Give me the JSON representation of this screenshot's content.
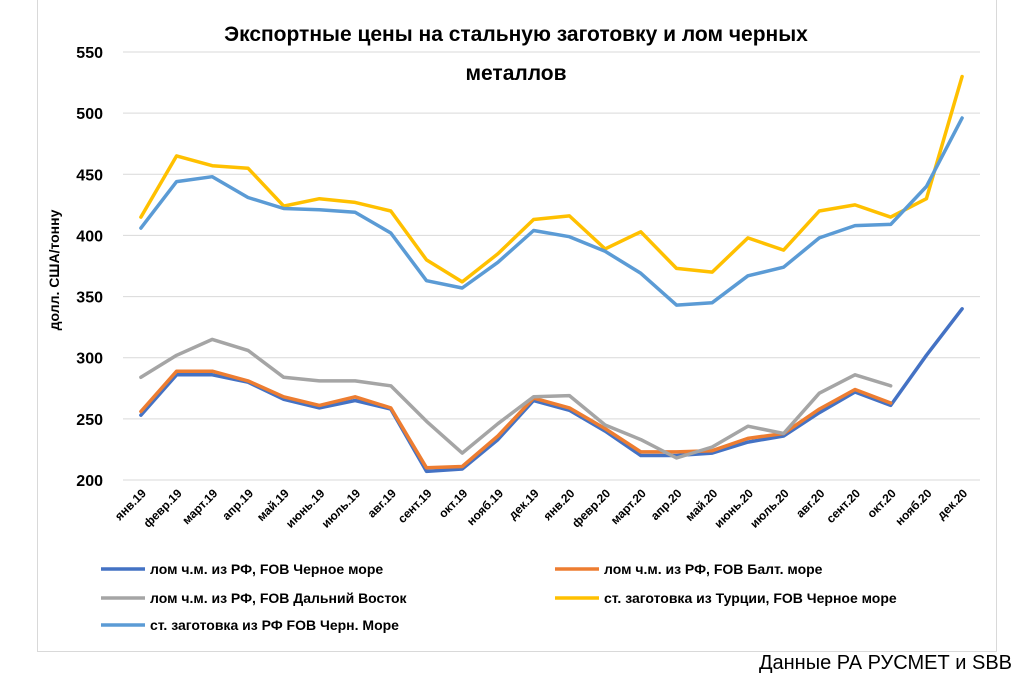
{
  "source_note": "Данные РА РУСМЕТ и SBB",
  "chart_data": {
    "type": "line",
    "title_lines": [
      "Экспортные цены на стальную заготовку и лом черных",
      "металлов"
    ],
    "ylabel": "долл. США/тонну",
    "xlabel": "",
    "ylim": [
      200,
      550
    ],
    "yticks": [
      200,
      250,
      300,
      350,
      400,
      450,
      500,
      550
    ],
    "grid": true,
    "legend_position": "bottom",
    "categories": [
      "янв.19",
      "февр.19",
      "март.19",
      "апр.19",
      "май.19",
      "июнь.19",
      "июль.19",
      "авг.19",
      "сент.19",
      "окт.19",
      "нояб.19",
      "дек.19",
      "янв.20",
      "февр.20",
      "март.20",
      "апр.20",
      "май.20",
      "июнь.20",
      "июль.20",
      "авг.20",
      "сент.20",
      "окт.20",
      "нояб.20",
      "дек.20"
    ],
    "series": [
      {
        "name": "лом ч.м. из РФ, FOB Черное море",
        "color": "#4472c4",
        "values": [
          253,
          286,
          286,
          280,
          266,
          259,
          265,
          258,
          207,
          209,
          233,
          265,
          257,
          240,
          220,
          220,
          222,
          231,
          236,
          255,
          272,
          261,
          302,
          340
        ]
      },
      {
        "name": "лом ч.м. из РФ, FOB Балт. море",
        "color": "#ed7d31",
        "values": [
          256,
          289,
          289,
          281,
          268,
          261,
          268,
          259,
          210,
          211,
          236,
          267,
          259,
          242,
          223,
          223,
          224,
          234,
          238,
          258,
          274,
          263,
          null,
          null
        ]
      },
      {
        "name": "лом ч.м. из РФ, FOB Дальний Восток",
        "color": "#a5a5a5",
        "values": [
          284,
          302,
          315,
          306,
          284,
          281,
          281,
          277,
          248,
          222,
          246,
          268,
          269,
          245,
          233,
          218,
          227,
          244,
          238,
          271,
          286,
          277,
          null,
          null
        ]
      },
      {
        "name": "ст. заготовка из Турции, FOB Черное море",
        "color": "#ffc000",
        "values": [
          415,
          465,
          457,
          455,
          424,
          430,
          427,
          420,
          380,
          362,
          385,
          413,
          416,
          389,
          403,
          373,
          370,
          398,
          388,
          420,
          425,
          415,
          430,
          530
        ]
      },
      {
        "name": "ст. заготовка из РФ FOB Черн. Море",
        "color": "#5b9bd5",
        "values": [
          406,
          444,
          448,
          431,
          422,
          421,
          419,
          402,
          363,
          357,
          378,
          404,
          399,
          387,
          369,
          343,
          345,
          367,
          374,
          398,
          408,
          409,
          440,
          496
        ]
      }
    ]
  }
}
